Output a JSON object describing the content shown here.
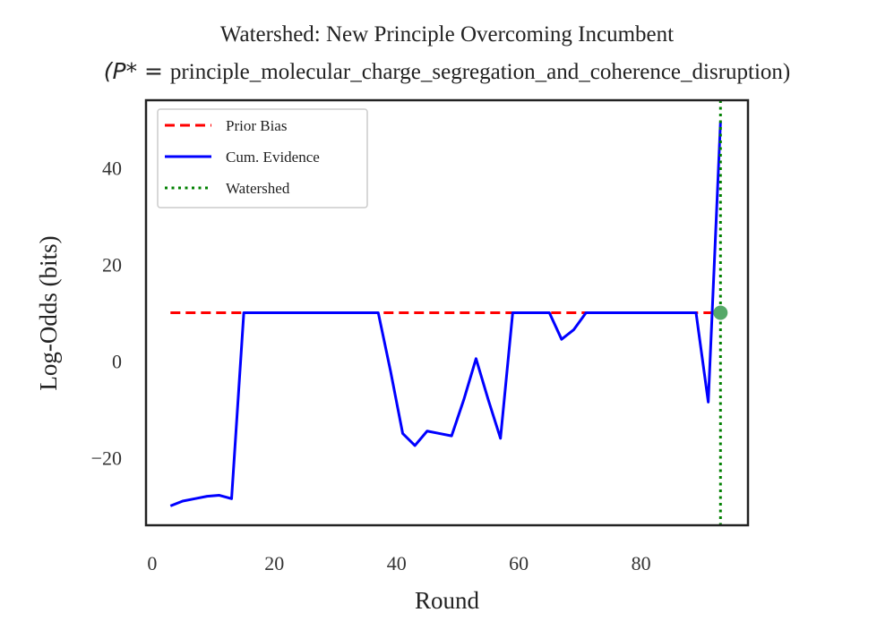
{
  "chart_data": {
    "type": "line",
    "title": "Watershed: New Principle Overcoming Incumbent",
    "subtitle_prefix": "(P* = ",
    "subtitle_text": "principle_molecular_charge_segregation_and_coherence_disruption)",
    "xlabel": "Round",
    "ylabel": "Log-Odds (bits)",
    "xlim": [
      -1,
      97.5
    ],
    "ylim": [
      -34,
      54
    ],
    "xticks": [
      0,
      20,
      40,
      60,
      80
    ],
    "yticks": [
      -20,
      0,
      20,
      40
    ],
    "ytick_labels": [
      "−20",
      "0",
      "20",
      "40"
    ],
    "grid": false,
    "legend_position": "top-left",
    "series": [
      {
        "name": "Prior Bias",
        "style": "dashed",
        "color": "#ff0000",
        "x": [
          3,
          93
        ],
        "y": [
          10,
          10
        ]
      },
      {
        "name": "Cum. Evidence",
        "style": "solid",
        "color": "#0000ff",
        "x": [
          3,
          5,
          7,
          9,
          11,
          13,
          15,
          17,
          19,
          21,
          23,
          25,
          27,
          29,
          31,
          33,
          35,
          37,
          39,
          41,
          43,
          45,
          47,
          49,
          51,
          53,
          55,
          57,
          59,
          61,
          63,
          65,
          67,
          69,
          71,
          73,
          75,
          77,
          79,
          81,
          83,
          85,
          87,
          89,
          91,
          93
        ],
        "y": [
          -30,
          -29,
          -28.5,
          -28,
          -27.8,
          -28.5,
          10,
          10,
          10,
          10,
          10,
          10,
          10,
          10,
          10,
          10,
          10,
          10,
          -2,
          -15,
          -17.5,
          -14.5,
          -15,
          -15.5,
          -8,
          0.5,
          -8,
          -16,
          10,
          10,
          10,
          10,
          4.5,
          6.5,
          10,
          10,
          10,
          10,
          10,
          10,
          10,
          10,
          10,
          10,
          -8.5,
          49.5
        ]
      },
      {
        "name": "Watershed",
        "style": "dotted",
        "color": "#008000",
        "x_value": 93
      }
    ],
    "marker": {
      "x": 93,
      "y": 10,
      "color": "#55a868"
    }
  }
}
